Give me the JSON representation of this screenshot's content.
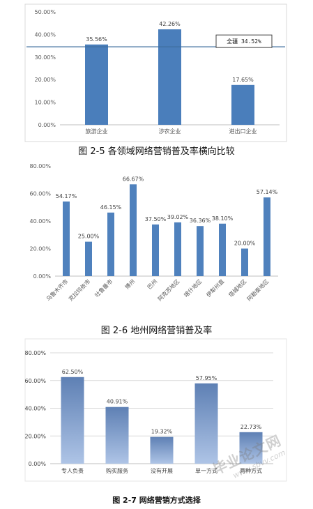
{
  "captions": {
    "fig1": "图 2-5 各领域网络营销普及率横向比较",
    "fig2": "图 2-6 地州网络营销普及率",
    "fig3": "图 2-7 网络营销方式选择"
  },
  "watermark": {
    "title": "毕业论文网",
    "url": "www.sbvv.com"
  },
  "chart_data": [
    {
      "type": "bar",
      "title": "",
      "xlabel": "",
      "ylabel": "",
      "categories": [
        "旅游企业",
        "涉农企业",
        "进出口企业"
      ],
      "values": [
        35.56,
        42.26,
        17.65
      ],
      "labels": [
        "35.56%",
        "42.26%",
        "17.65%"
      ],
      "ylim": [
        0,
        50
      ],
      "yticks": [
        "0.00%",
        "10.00%",
        "20.00%",
        "30.00%",
        "40.00%",
        "50.00%"
      ],
      "grid": false,
      "reference_line": {
        "value": 34.52,
        "label": "全疆 34.52%"
      },
      "colors": {
        "bar": "#4a7ebb",
        "line": "#3d6e9e",
        "axis": "#bfbfbf",
        "text": "#595959"
      }
    },
    {
      "type": "bar",
      "title": "",
      "xlabel": "",
      "ylabel": "",
      "categories": [
        "乌鲁木齐市",
        "克拉玛依市",
        "吐鲁番市",
        "博州",
        "巴州",
        "阿克苏地区",
        "喀什地区",
        "伊犁州直",
        "塔城地区",
        "阿勒泰地区"
      ],
      "values": [
        54.17,
        25.0,
        46.15,
        66.67,
        37.5,
        39.02,
        36.36,
        38.1,
        20.0,
        57.14
      ],
      "labels": [
        "54.17%",
        "25.00%",
        "46.15%",
        "66.67%",
        "37.50%",
        "39.02%",
        "36.36%",
        "38.10%",
        "20.00%",
        "57.14%"
      ],
      "ylim": [
        0,
        80
      ],
      "yticks": [
        "0.00%",
        "20.00%",
        "40.00%",
        "60.00%",
        "80.00%"
      ],
      "grid": false,
      "colors": {
        "bar": "#4f81bd",
        "axis": "#bfbfbf",
        "text": "#595959"
      }
    },
    {
      "type": "bar",
      "title": "",
      "xlabel": "",
      "ylabel": "",
      "categories": [
        "专人负责",
        "购买服务",
        "没有开展",
        "单一方式",
        "两种方式"
      ],
      "values": [
        62.5,
        40.91,
        19.32,
        57.95,
        22.73
      ],
      "labels": [
        "62.50%",
        "40.91%",
        "19.32%",
        "57.95%",
        "22.73%"
      ],
      "ylim": [
        0,
        80
      ],
      "yticks": [
        "0.00%",
        "20.00%",
        "40.00%",
        "60.00%",
        "80.00%"
      ],
      "grid": true,
      "colors": {
        "bar_top": "#5e80b4",
        "bar_bottom": "#aec4e6",
        "grid": "#d9d9d9",
        "axis": "#bfbfbf",
        "text": "#404040"
      }
    }
  ]
}
